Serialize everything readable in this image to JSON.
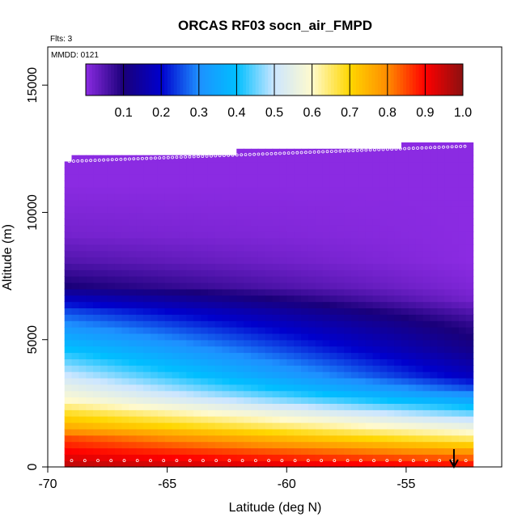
{
  "chart_data": {
    "type": "heatmap",
    "title": "ORCAS RF03 socn_air_FMPD",
    "xlabel": "Latitude (deg N)",
    "ylabel": "Altitude (m)",
    "xlim": [
      -70,
      -51
    ],
    "ylim": [
      0,
      16500
    ],
    "x_ticks": [
      "-70",
      "-65",
      "-60",
      "-55"
    ],
    "x_tick_values": [
      -70,
      -65,
      -60,
      -55
    ],
    "y_ticks": [
      "0",
      "5000",
      "10000",
      "15000"
    ],
    "y_tick_values": [
      0,
      5000,
      10000,
      15000
    ],
    "flights_note": "Flts: 3",
    "date_note": "MMDD: 0121",
    "colorbar": {
      "range": [
        0,
        1
      ],
      "tick_labels": [
        "0.1",
        "0.2",
        "0.3",
        "0.4",
        "0.5",
        "0.6",
        "0.7",
        "0.8",
        "0.9",
        "1.0"
      ],
      "tick_values": [
        0.1,
        0.2,
        0.3,
        0.4,
        0.5,
        0.6,
        0.7,
        0.8,
        0.9,
        1.0
      ],
      "colors": [
        "#8b2be2",
        "#1a007a",
        "#0000cd",
        "#1e90ff",
        "#00bfff",
        "#cce6ff",
        "#fffacd",
        "#ffd700",
        "#ff8c00",
        "#ff0000",
        "#8b1010"
      ]
    },
    "coverage": {
      "lat_min": -69.3,
      "lat_max": -52.4,
      "alt_top_south": 12000,
      "alt_top_north": 12600
    },
    "profile": {
      "description_levels_m": [
        0,
        500,
        1000,
        1500,
        2000,
        2500,
        3000,
        3500,
        4000,
        4500,
        5000,
        5500,
        6000,
        6500,
        7000,
        8000,
        9000,
        10000,
        11000,
        12000
      ],
      "south_values": [
        0.95,
        0.9,
        0.85,
        0.75,
        0.68,
        0.6,
        0.55,
        0.5,
        0.45,
        0.4,
        0.35,
        0.3,
        0.25,
        0.18,
        0.1,
        0.05,
        0.02,
        0.01,
        0.0,
        0.0
      ],
      "north_values": [
        0.88,
        0.78,
        0.65,
        0.55,
        0.45,
        0.35,
        0.25,
        0.18,
        0.15,
        0.12,
        0.1,
        0.08,
        0.05,
        0.02,
        0.01,
        0.0,
        0.0,
        0.0,
        0.0,
        0.0
      ]
    },
    "marker_lat": -53
  }
}
